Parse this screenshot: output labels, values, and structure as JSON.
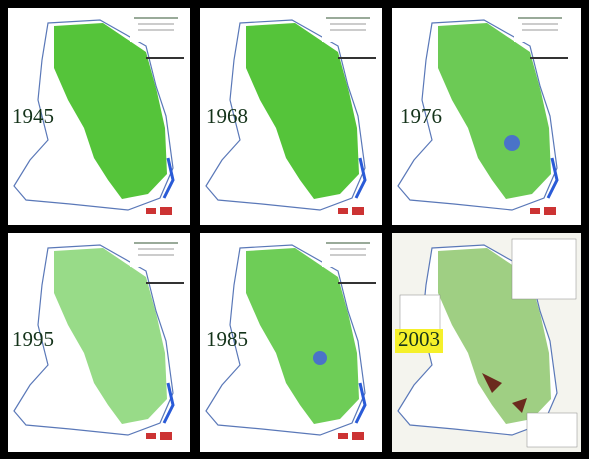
{
  "panels": [
    {
      "year": "1945"
    },
    {
      "year": "1968"
    },
    {
      "year": "1976"
    },
    {
      "year": "1995"
    },
    {
      "year": "1985"
    },
    {
      "year": "2003"
    }
  ]
}
